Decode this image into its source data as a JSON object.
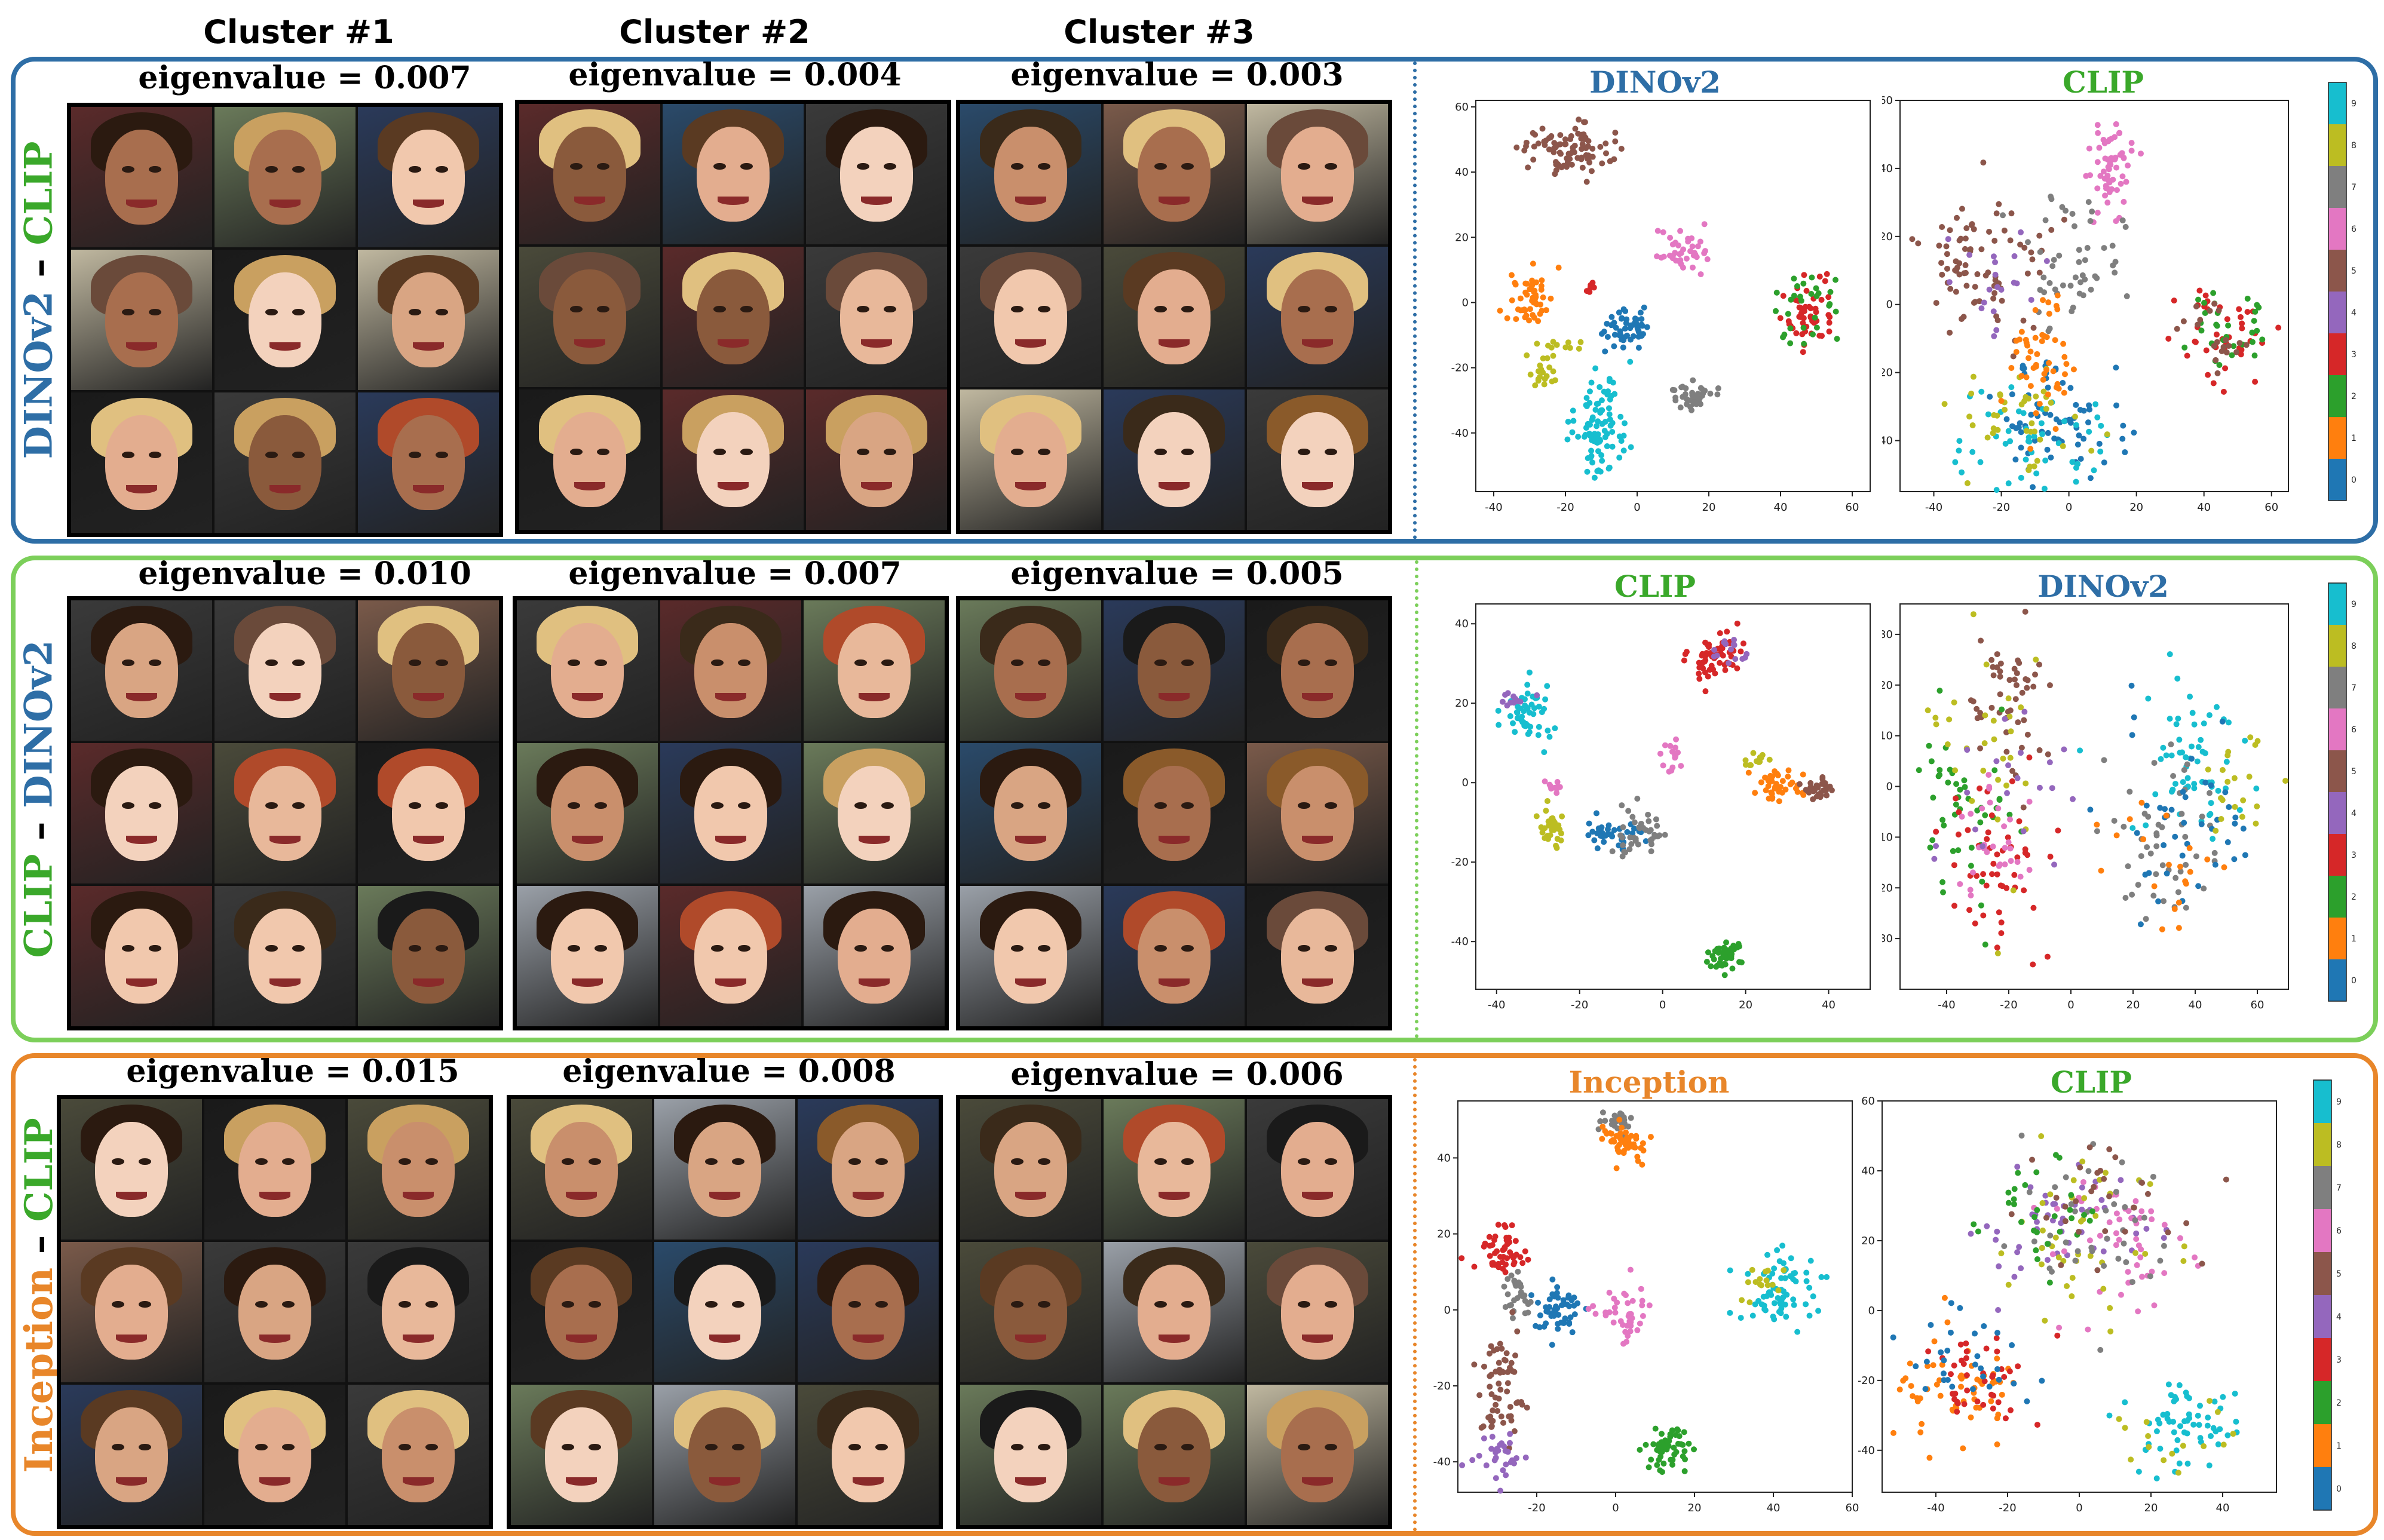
{
  "cluster_headers": [
    "Cluster #1",
    "Cluster #2",
    "Cluster #3"
  ],
  "colors": {
    "dino": "#2e6ea6",
    "clip": "#3aa82a",
    "inception": "#e8862a",
    "row1_border": "#2e6ea6",
    "row2_border": "#7ccf5a",
    "row3_border": "#e8862a"
  },
  "palette": [
    "#1f77b4",
    "#ff7f0e",
    "#2ca02c",
    "#d62728",
    "#9467bd",
    "#8c564b",
    "#e377c2",
    "#7f7f7f",
    "#bcbd22",
    "#17becf"
  ],
  "rows": [
    {
      "label_a": "DINOv2",
      "label_sep": " – ",
      "label_b": "CLIP",
      "eigenvalues": [
        "eigenvalue = 0.007",
        "eigenvalue = 0.004",
        "eigenvalue = 0.003"
      ],
      "plot_titles": [
        "DINOv2",
        "CLIP"
      ]
    },
    {
      "label_a": "CLIP",
      "label_sep": " – ",
      "label_b": "DINOv2",
      "eigenvalues": [
        "eigenvalue = 0.010",
        "eigenvalue = 0.007",
        "eigenvalue = 0.005"
      ],
      "plot_titles": [
        "CLIP",
        "DINOv2"
      ]
    },
    {
      "label_a": "Inception",
      "label_sep": " – ",
      "label_b": "CLIP",
      "eigenvalues": [
        "eigenvalue = 0.015",
        "eigenvalue = 0.008",
        "eigenvalue = 0.006"
      ],
      "plot_titles": [
        "Inception",
        "CLIP"
      ]
    }
  ],
  "chart_data": [
    {
      "type": "scatter",
      "title": "DINOv2",
      "xlim": [
        -45,
        65
      ],
      "ylim": [
        -58,
        62
      ],
      "xticks": [
        -40,
        -20,
        0,
        20,
        40,
        60
      ],
      "yticks": [
        -40,
        -20,
        0,
        20,
        40,
        60
      ],
      "clusters": [
        {
          "label": 5,
          "cx": -20,
          "cy": 47,
          "sx": 6,
          "sy": 4,
          "n": 90
        },
        {
          "label": 6,
          "cx": 12,
          "cy": 16,
          "sx": 4,
          "sy": 3,
          "n": 40
        },
        {
          "label": 1,
          "cx": -30,
          "cy": 1,
          "sx": 3,
          "sy": 4,
          "n": 50
        },
        {
          "label": 3,
          "cx": -13,
          "cy": 5,
          "sx": 1,
          "sy": 1,
          "n": 8
        },
        {
          "label": 0,
          "cx": -2,
          "cy": -8,
          "sx": 4,
          "sy": 3,
          "n": 50
        },
        {
          "label": 8,
          "cx": -27,
          "cy": -22,
          "sx": 2,
          "sy": 3,
          "n": 20
        },
        {
          "label": 8,
          "cx": -20,
          "cy": -13,
          "sx": 3,
          "sy": 1,
          "n": 10
        },
        {
          "label": 9,
          "cx": -10,
          "cy": -37,
          "sx": 4,
          "sy": 8,
          "n": 90
        },
        {
          "label": 7,
          "cx": 15,
          "cy": -29,
          "sx": 3,
          "sy": 2,
          "n": 40
        },
        {
          "label": 3,
          "cx": 47,
          "cy": -2,
          "sx": 4,
          "sy": 5,
          "n": 50
        },
        {
          "label": 2,
          "cx": 47,
          "cy": -2,
          "sx": 4,
          "sy": 5,
          "n": 30
        }
      ]
    },
    {
      "type": "scatter",
      "title": "CLIP",
      "xlim": [
        -50,
        65
      ],
      "ylim": [
        -55,
        60
      ],
      "xticks": [
        -40,
        -20,
        0,
        20,
        40,
        60
      ],
      "yticks": [
        -40,
        -20,
        0,
        20,
        40,
        60
      ],
      "clusters": [
        {
          "label": 6,
          "cx": 12,
          "cy": 40,
          "sx": 3,
          "sy": 7,
          "n": 60
        },
        {
          "label": 5,
          "cx": -25,
          "cy": 12,
          "sx": 10,
          "sy": 10,
          "n": 80
        },
        {
          "label": 4,
          "cx": -20,
          "cy": 8,
          "sx": 8,
          "sy": 8,
          "n": 20
        },
        {
          "label": 7,
          "cx": 0,
          "cy": 12,
          "sx": 8,
          "sy": 10,
          "n": 50
        },
        {
          "label": 0,
          "cx": -5,
          "cy": -35,
          "sx": 12,
          "sy": 8,
          "n": 70
        },
        {
          "label": 9,
          "cx": -8,
          "cy": -40,
          "sx": 12,
          "sy": 8,
          "n": 50
        },
        {
          "label": 8,
          "cx": -12,
          "cy": -35,
          "sx": 10,
          "sy": 8,
          "n": 40
        },
        {
          "label": 1,
          "cx": -8,
          "cy": -15,
          "sx": 5,
          "sy": 10,
          "n": 50
        },
        {
          "label": 3,
          "cx": 45,
          "cy": -8,
          "sx": 6,
          "sy": 6,
          "n": 40
        },
        {
          "label": 2,
          "cx": 45,
          "cy": -8,
          "sx": 6,
          "sy": 6,
          "n": 30
        },
        {
          "label": 5,
          "cx": 45,
          "cy": -8,
          "sx": 6,
          "sy": 6,
          "n": 20
        }
      ]
    },
    {
      "type": "scatter",
      "title": "CLIP",
      "xlim": [
        -45,
        50
      ],
      "ylim": [
        -52,
        45
      ],
      "xticks": [
        -40,
        -20,
        0,
        20,
        40
      ],
      "yticks": [
        -40,
        -20,
        0,
        20,
        40
      ],
      "clusters": [
        {
          "label": 3,
          "cx": 13,
          "cy": 32,
          "sx": 3,
          "sy": 3,
          "n": 60
        },
        {
          "label": 4,
          "cx": 16,
          "cy": 33,
          "sx": 2,
          "sy": 2,
          "n": 15
        },
        {
          "label": 9,
          "cx": -33,
          "cy": 17,
          "sx": 3,
          "sy": 4,
          "n": 50
        },
        {
          "label": 4,
          "cx": -36,
          "cy": 21,
          "sx": 2,
          "sy": 1,
          "n": 12
        },
        {
          "label": 6,
          "cx": 2,
          "cy": 7,
          "sx": 2,
          "sy": 2,
          "n": 15
        },
        {
          "label": 6,
          "cx": -26,
          "cy": -1,
          "sx": 1,
          "sy": 1,
          "n": 10
        },
        {
          "label": 8,
          "cx": -26,
          "cy": -11,
          "sx": 2,
          "sy": 3,
          "n": 30
        },
        {
          "label": 0,
          "cx": -13,
          "cy": -13,
          "sx": 5,
          "sy": 2,
          "n": 40
        },
        {
          "label": 7,
          "cx": -6,
          "cy": -13,
          "sx": 3,
          "sy": 3,
          "n": 40
        },
        {
          "label": 1,
          "cx": 28,
          "cy": -1,
          "sx": 3,
          "sy": 2,
          "n": 40
        },
        {
          "label": 5,
          "cx": 38,
          "cy": -2,
          "sx": 2,
          "sy": 2,
          "n": 30
        },
        {
          "label": 8,
          "cx": 23,
          "cy": 6,
          "sx": 2,
          "sy": 1,
          "n": 12
        },
        {
          "label": 2,
          "cx": 15,
          "cy": -43,
          "sx": 2,
          "sy": 2,
          "n": 50
        }
      ]
    },
    {
      "type": "scatter",
      "title": "DINOv2",
      "xlim": [
        -55,
        70
      ],
      "ylim": [
        -40,
        36
      ],
      "xticks": [
        -40,
        -20,
        0,
        20,
        40,
        60
      ],
      "yticks": [
        -30,
        -20,
        -10,
        0,
        10,
        20,
        30
      ],
      "clusters": [
        {
          "label": 5,
          "cx": -20,
          "cy": 15,
          "sx": 7,
          "sy": 8,
          "n": 50
        },
        {
          "label": 2,
          "cx": -35,
          "cy": -5,
          "sx": 8,
          "sy": 10,
          "n": 50
        },
        {
          "label": 3,
          "cx": -25,
          "cy": -15,
          "sx": 8,
          "sy": 10,
          "n": 50
        },
        {
          "label": 6,
          "cx": -25,
          "cy": -10,
          "sx": 6,
          "sy": 6,
          "n": 30
        },
        {
          "label": 8,
          "cx": -30,
          "cy": 10,
          "sx": 10,
          "sy": 10,
          "n": 30
        },
        {
          "label": 4,
          "cx": -20,
          "cy": 0,
          "sx": 10,
          "sy": 10,
          "n": 20
        },
        {
          "label": 9,
          "cx": 40,
          "cy": 5,
          "sx": 10,
          "sy": 8,
          "n": 60
        },
        {
          "label": 7,
          "cx": 30,
          "cy": -10,
          "sx": 10,
          "sy": 8,
          "n": 50
        },
        {
          "label": 0,
          "cx": 35,
          "cy": -5,
          "sx": 12,
          "sy": 10,
          "n": 40
        },
        {
          "label": 1,
          "cx": 30,
          "cy": -15,
          "sx": 10,
          "sy": 8,
          "n": 20
        },
        {
          "label": 8,
          "cx": 55,
          "cy": 0,
          "sx": 6,
          "sy": 5,
          "n": 20
        }
      ]
    },
    {
      "type": "scatter",
      "title": "Inception",
      "xlim": [
        -40,
        60
      ],
      "ylim": [
        -48,
        55
      ],
      "xticks": [
        -20,
        0,
        20,
        40,
        60
      ],
      "yticks": [
        -40,
        -20,
        0,
        20,
        40
      ],
      "clusters": [
        {
          "label": 7,
          "cx": 0,
          "cy": 50,
          "sx": 2,
          "sy": 2,
          "n": 25
        },
        {
          "label": 1,
          "cx": 2,
          "cy": 44,
          "sx": 3,
          "sy": 2,
          "n": 50
        },
        {
          "label": 3,
          "cx": -29,
          "cy": 16,
          "sx": 3,
          "sy": 3,
          "n": 50
        },
        {
          "label": 7,
          "cx": -25,
          "cy": 4,
          "sx": 2,
          "sy": 4,
          "n": 30
        },
        {
          "label": 0,
          "cx": -15,
          "cy": 0,
          "sx": 3,
          "sy": 3,
          "n": 50
        },
        {
          "label": 6,
          "cx": 2,
          "cy": -1,
          "sx": 3,
          "sy": 3,
          "n": 40
        },
        {
          "label": 5,
          "cx": -28,
          "cy": -22,
          "sx": 3,
          "sy": 8,
          "n": 60
        },
        {
          "label": 4,
          "cx": -30,
          "cy": -39,
          "sx": 3,
          "sy": 3,
          "n": 30
        },
        {
          "label": 9,
          "cx": 42,
          "cy": 5,
          "sx": 5,
          "sy": 5,
          "n": 70
        },
        {
          "label": 8,
          "cx": 37,
          "cy": 8,
          "sx": 2,
          "sy": 2,
          "n": 15
        },
        {
          "label": 2,
          "cx": 13,
          "cy": -37,
          "sx": 3,
          "sy": 3,
          "n": 50
        }
      ]
    },
    {
      "type": "scatter",
      "title": "CLIP",
      "xlim": [
        -55,
        55
      ],
      "ylim": [
        -52,
        60
      ],
      "xticks": [
        -40,
        -20,
        0,
        20,
        40
      ],
      "yticks": [
        -40,
        -20,
        0,
        20,
        40,
        60
      ],
      "clusters": [
        {
          "label": 4,
          "cx": -5,
          "cy": 25,
          "sx": 14,
          "sy": 10,
          "n": 50
        },
        {
          "label": 6,
          "cx": 10,
          "cy": 20,
          "sx": 12,
          "sy": 12,
          "n": 50
        },
        {
          "label": 8,
          "cx": 0,
          "cy": 20,
          "sx": 14,
          "sy": 12,
          "n": 40
        },
        {
          "label": 7,
          "cx": 5,
          "cy": 25,
          "sx": 12,
          "sy": 12,
          "n": 40
        },
        {
          "label": 2,
          "cx": -10,
          "cy": 25,
          "sx": 10,
          "sy": 10,
          "n": 30
        },
        {
          "label": 5,
          "cx": 5,
          "cy": 30,
          "sx": 12,
          "sy": 10,
          "n": 30
        },
        {
          "label": 1,
          "cx": -35,
          "cy": -20,
          "sx": 10,
          "sy": 8,
          "n": 60
        },
        {
          "label": 3,
          "cx": -25,
          "cy": -18,
          "sx": 10,
          "sy": 8,
          "n": 40
        },
        {
          "label": 0,
          "cx": -30,
          "cy": -15,
          "sx": 10,
          "sy": 8,
          "n": 30
        },
        {
          "label": 9,
          "cx": 30,
          "cy": -30,
          "sx": 8,
          "sy": 8,
          "n": 60
        },
        {
          "label": 8,
          "cx": 25,
          "cy": -35,
          "sx": 8,
          "sy": 6,
          "n": 15
        }
      ]
    }
  ],
  "colorbar_ticks": [
    "0",
    "1",
    "2",
    "3",
    "4",
    "5",
    "6",
    "7",
    "8",
    "9"
  ]
}
